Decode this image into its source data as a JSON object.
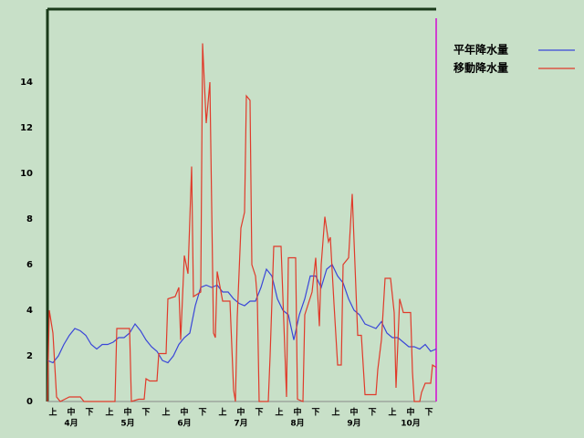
{
  "chart_data": {
    "type": "line",
    "legend": "right",
    "ylim": [
      0,
      17.2
    ],
    "yticks": [
      0,
      2,
      4,
      6,
      8,
      10,
      12,
      14
    ],
    "xlim": [
      0,
      213
    ],
    "xticks": [
      {
        "value": 3,
        "label": "上"
      },
      {
        "value": 13,
        "label": "中"
      },
      {
        "value": 23,
        "label": "下"
      },
      {
        "value": 34,
        "label": "上"
      },
      {
        "value": 44,
        "label": "中"
      },
      {
        "value": 54,
        "label": "下"
      },
      {
        "value": 65,
        "label": "上"
      },
      {
        "value": 75,
        "label": "中"
      },
      {
        "value": 85,
        "label": "下"
      },
      {
        "value": 96,
        "label": "上"
      },
      {
        "value": 106,
        "label": "中"
      },
      {
        "value": 116,
        "label": "下"
      },
      {
        "value": 127,
        "label": "上"
      },
      {
        "value": 137,
        "label": "中"
      },
      {
        "value": 147,
        "label": "下"
      },
      {
        "value": 158,
        "label": "上"
      },
      {
        "value": 168,
        "label": "中"
      },
      {
        "value": 178,
        "label": "下"
      },
      {
        "value": 189,
        "label": "上"
      },
      {
        "value": 199,
        "label": "中"
      },
      {
        "value": 209,
        "label": "下"
      }
    ],
    "month_ticks": [
      {
        "value": 13,
        "label": "4月"
      },
      {
        "value": 44,
        "label": "5月"
      },
      {
        "value": 75,
        "label": "6月"
      },
      {
        "value": 106,
        "label": "7月"
      },
      {
        "value": 137,
        "label": "8月"
      },
      {
        "value": 168,
        "label": "9月"
      },
      {
        "value": 199,
        "label": "10月"
      }
    ],
    "series": [
      {
        "name": "平年降水量",
        "color": "#3a46d8",
        "x": [
          0,
          3,
          6,
          9,
          12,
          15,
          18,
          21,
          24,
          27,
          30,
          33,
          36,
          39,
          42,
          45,
          48,
          51,
          54,
          57,
          60,
          63,
          66,
          69,
          72,
          75,
          78,
          81,
          84,
          87,
          90,
          93,
          96,
          99,
          102,
          105,
          108,
          111,
          114,
          117,
          120,
          123,
          126,
          129,
          132,
          135,
          138,
          141,
          144,
          147,
          150,
          153,
          156,
          159,
          162,
          165,
          168,
          171,
          174,
          177,
          180,
          183,
          186,
          189,
          192,
          195,
          198,
          201,
          204,
          207,
          210,
          213
        ],
        "values": [
          1.8,
          1.7,
          2.0,
          2.5,
          2.9,
          3.2,
          3.1,
          2.9,
          2.5,
          2.3,
          2.5,
          2.5,
          2.6,
          2.8,
          2.8,
          3.0,
          3.4,
          3.1,
          2.7,
          2.4,
          2.2,
          1.8,
          1.7,
          2.0,
          2.5,
          2.8,
          3.0,
          4.2,
          5.0,
          5.1,
          5.0,
          5.1,
          4.8,
          4.8,
          4.5,
          4.3,
          4.2,
          4.4,
          4.4,
          5.0,
          5.8,
          5.5,
          4.5,
          4.0,
          3.8,
          2.7,
          3.8,
          4.5,
          5.5,
          5.5,
          5.0,
          5.8,
          6.0,
          5.5,
          5.2,
          4.5,
          4.0,
          3.8,
          3.4,
          3.3,
          3.2,
          3.5,
          3.0,
          2.8,
          2.8,
          2.6,
          2.4,
          2.4,
          2.3,
          2.5,
          2.2,
          2.3
        ]
      },
      {
        "name": "移動降水量",
        "color": "#e03a2a",
        "x": [
          0,
          1,
          3,
          5,
          7,
          12,
          18,
          20,
          37,
          38,
          45,
          46,
          50,
          53,
          54,
          56,
          60,
          61,
          65,
          66,
          70,
          72,
          73,
          75,
          77,
          79,
          80,
          84,
          85,
          87,
          89,
          91,
          92,
          93,
          96,
          100,
          102,
          103,
          104,
          106,
          108,
          109,
          111,
          112,
          114,
          115,
          116,
          121,
          122,
          124,
          128,
          129,
          131,
          132,
          136,
          137,
          140,
          141,
          145,
          147,
          149,
          150,
          152,
          154,
          155,
          157,
          159,
          161,
          162,
          165,
          167,
          170,
          172,
          174,
          180,
          181,
          183,
          185,
          188,
          190,
          191,
          193,
          195,
          199,
          200,
          201,
          204,
          205,
          207,
          210,
          211,
          213
        ],
        "values": [
          0,
          4.0,
          3.0,
          0.2,
          0,
          0.2,
          0.2,
          0,
          0,
          3.2,
          3.2,
          0,
          0.1,
          0.1,
          1.0,
          0.9,
          0.9,
          2.1,
          2.1,
          4.5,
          4.6,
          5.0,
          2.7,
          6.4,
          5.6,
          10.3,
          4.6,
          4.8,
          15.7,
          12.2,
          14.0,
          3.0,
          2.8,
          5.7,
          4.4,
          4.4,
          0.5,
          0,
          3.7,
          7.6,
          8.3,
          13.4,
          13.2,
          6.0,
          5.5,
          4.5,
          0,
          0,
          2.0,
          6.8,
          6.8,
          4.6,
          0.2,
          6.3,
          6.3,
          0.1,
          0,
          3.8,
          4.8,
          6.3,
          3.3,
          6.0,
          8.1,
          7.0,
          7.2,
          4.3,
          1.6,
          1.6,
          6.0,
          6.3,
          9.1,
          2.9,
          2.9,
          0.3,
          0.3,
          1.4,
          2.7,
          5.4,
          5.4,
          3.9,
          0.6,
          4.5,
          3.9,
          3.9,
          1.3,
          0,
          0,
          0.4,
          0.8,
          0.8,
          1.6,
          1.5
        ]
      }
    ]
  }
}
